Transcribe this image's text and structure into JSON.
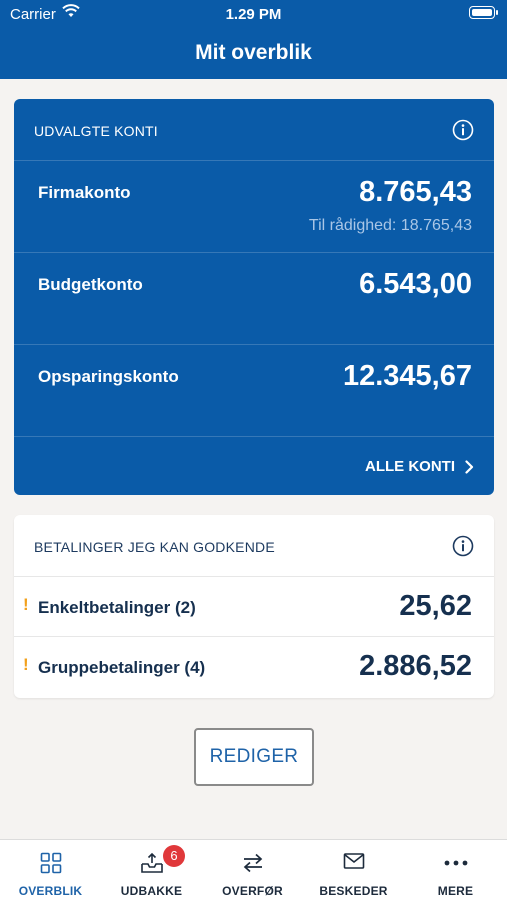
{
  "status_bar": {
    "carrier": "Carrier",
    "time": "1.29 PM"
  },
  "header": {
    "title": "Mit overblik"
  },
  "accounts_card": {
    "heading": "UDVALGTE KONTI",
    "accounts": [
      {
        "name": "Firmakonto",
        "amount": "8.765,43",
        "available": "Til rådighed: 18.765,43"
      },
      {
        "name": "Budgetkonto",
        "amount": "6.543,00"
      },
      {
        "name": "Opsparingskonto",
        "amount": "12.345,67"
      }
    ],
    "all_accounts_label": "ALLE KONTI"
  },
  "payments_card": {
    "heading": "BETALINGER JEG KAN GODKENDE",
    "items": [
      {
        "warning": "!",
        "name": "Enkeltbetalinger (2)",
        "amount": "25,62"
      },
      {
        "warning": "!",
        "name": "Gruppebetalinger (4)",
        "amount": "2.886,52"
      }
    ]
  },
  "edit_button_label": "REDIGER",
  "tabbar": {
    "tabs": [
      {
        "label": "OVERBLIK",
        "icon": "grid-icon",
        "active": true
      },
      {
        "label": "UDBAKKE",
        "icon": "outbox-icon",
        "badge": "6"
      },
      {
        "label": "OVERFØR",
        "icon": "transfer-icon"
      },
      {
        "label": "BESKEDER",
        "icon": "envelope-icon"
      },
      {
        "label": "MERE",
        "icon": "more-dots-icon"
      }
    ]
  },
  "colors": {
    "brand_blue": "#0a5ba8",
    "warning_orange": "#f2a01b",
    "badge_red": "#e0383a"
  }
}
